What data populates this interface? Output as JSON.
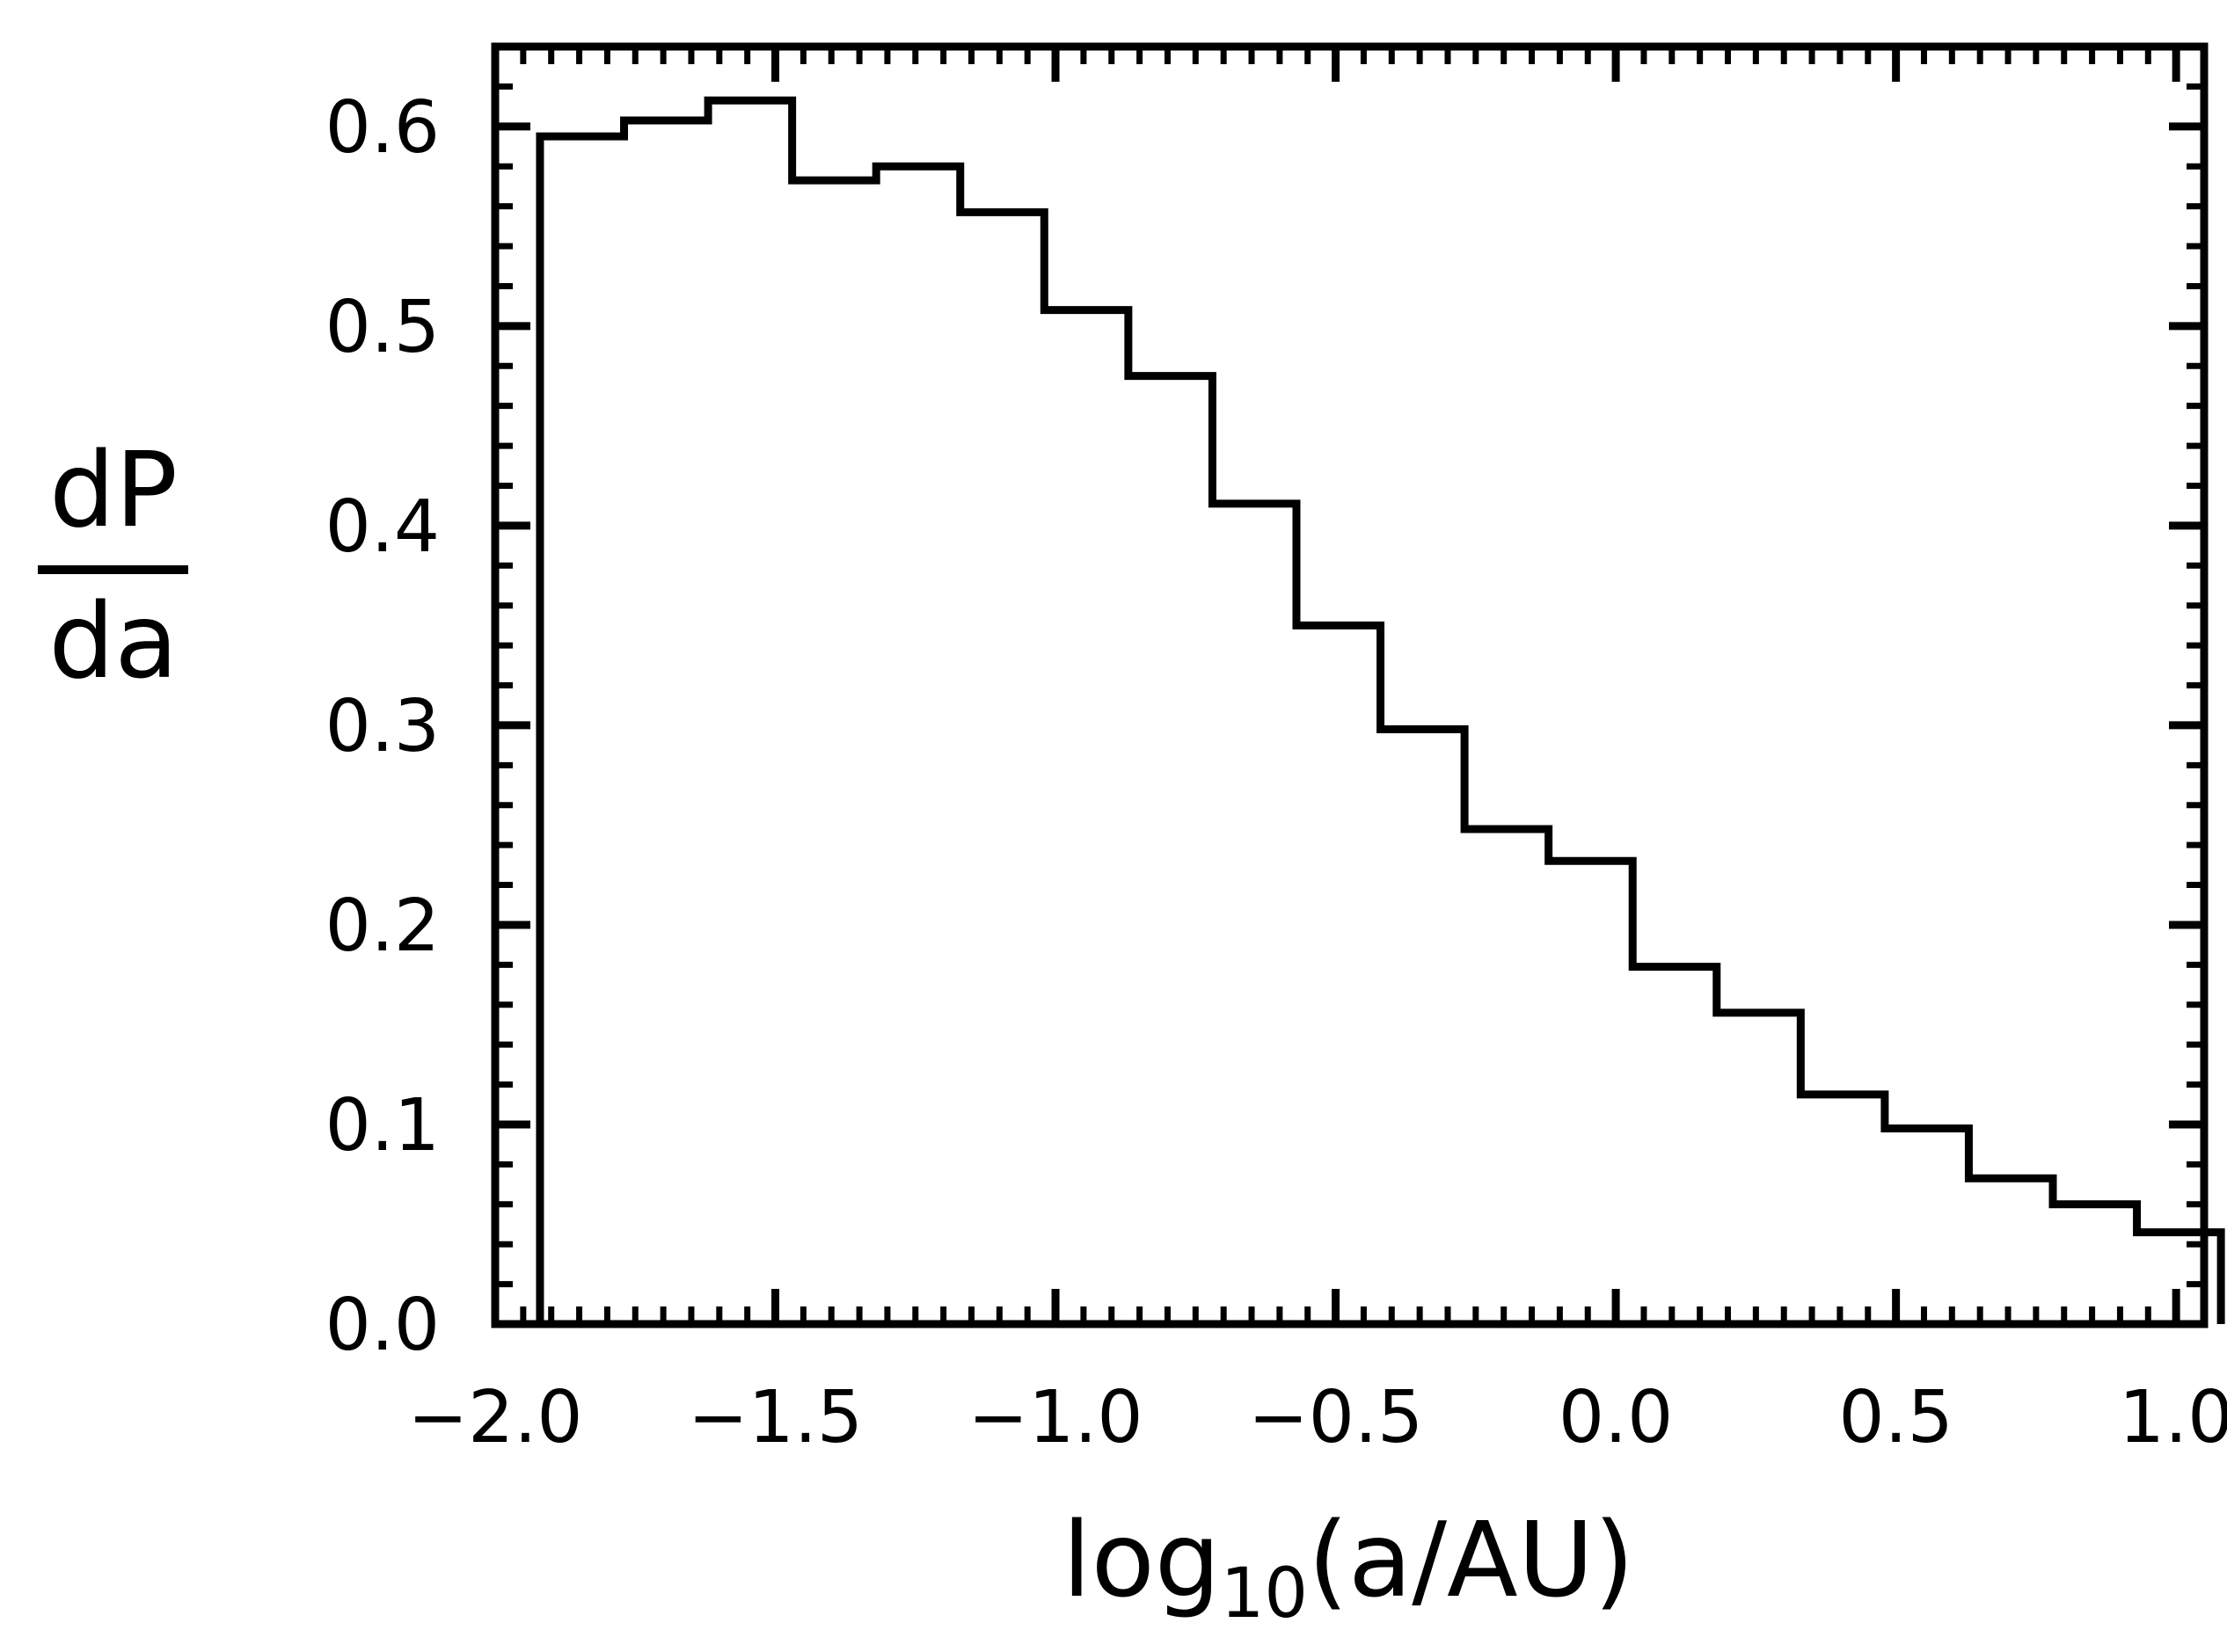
{
  "chart_data": {
    "type": "histogram",
    "title": "",
    "xlabel": {
      "main": "log",
      "sub": "10",
      "rest": "(a/AU)"
    },
    "ylabel": {
      "numerator": "dP",
      "denominator": "da"
    },
    "xlim": [
      -2.0,
      1.05
    ],
    "ylim": [
      0.0,
      0.64
    ],
    "x_ticks": [
      -2.0,
      -1.5,
      -1.0,
      -0.5,
      0.0,
      0.5,
      1.0
    ],
    "x_tick_labels": [
      "−2.0",
      "−1.5",
      "−1.0",
      "−0.5",
      "0.0",
      "0.5",
      "1.0"
    ],
    "y_ticks": [
      0.0,
      0.1,
      0.2,
      0.3,
      0.4,
      0.5,
      0.6
    ],
    "y_tick_labels": [
      "0.0",
      "0.1",
      "0.2",
      "0.3",
      "0.4",
      "0.5",
      "0.6"
    ],
    "grid": false,
    "bin_edges": [
      -1.92,
      -1.77,
      -1.62,
      -1.47,
      -1.32,
      -1.17,
      -1.02,
      -0.87,
      -0.72,
      -0.57,
      -0.42,
      -0.27,
      -0.12,
      0.03,
      0.18,
      0.33,
      0.48,
      0.63,
      0.78,
      0.93,
      1.08
    ],
    "values": [
      0.595,
      0.603,
      0.613,
      0.573,
      0.58,
      0.557,
      0.508,
      0.475,
      0.411,
      0.35,
      0.298,
      0.248,
      0.232,
      0.179,
      0.156,
      0.115,
      0.098,
      0.073,
      0.06,
      0.046
    ],
    "color": "#000000"
  }
}
